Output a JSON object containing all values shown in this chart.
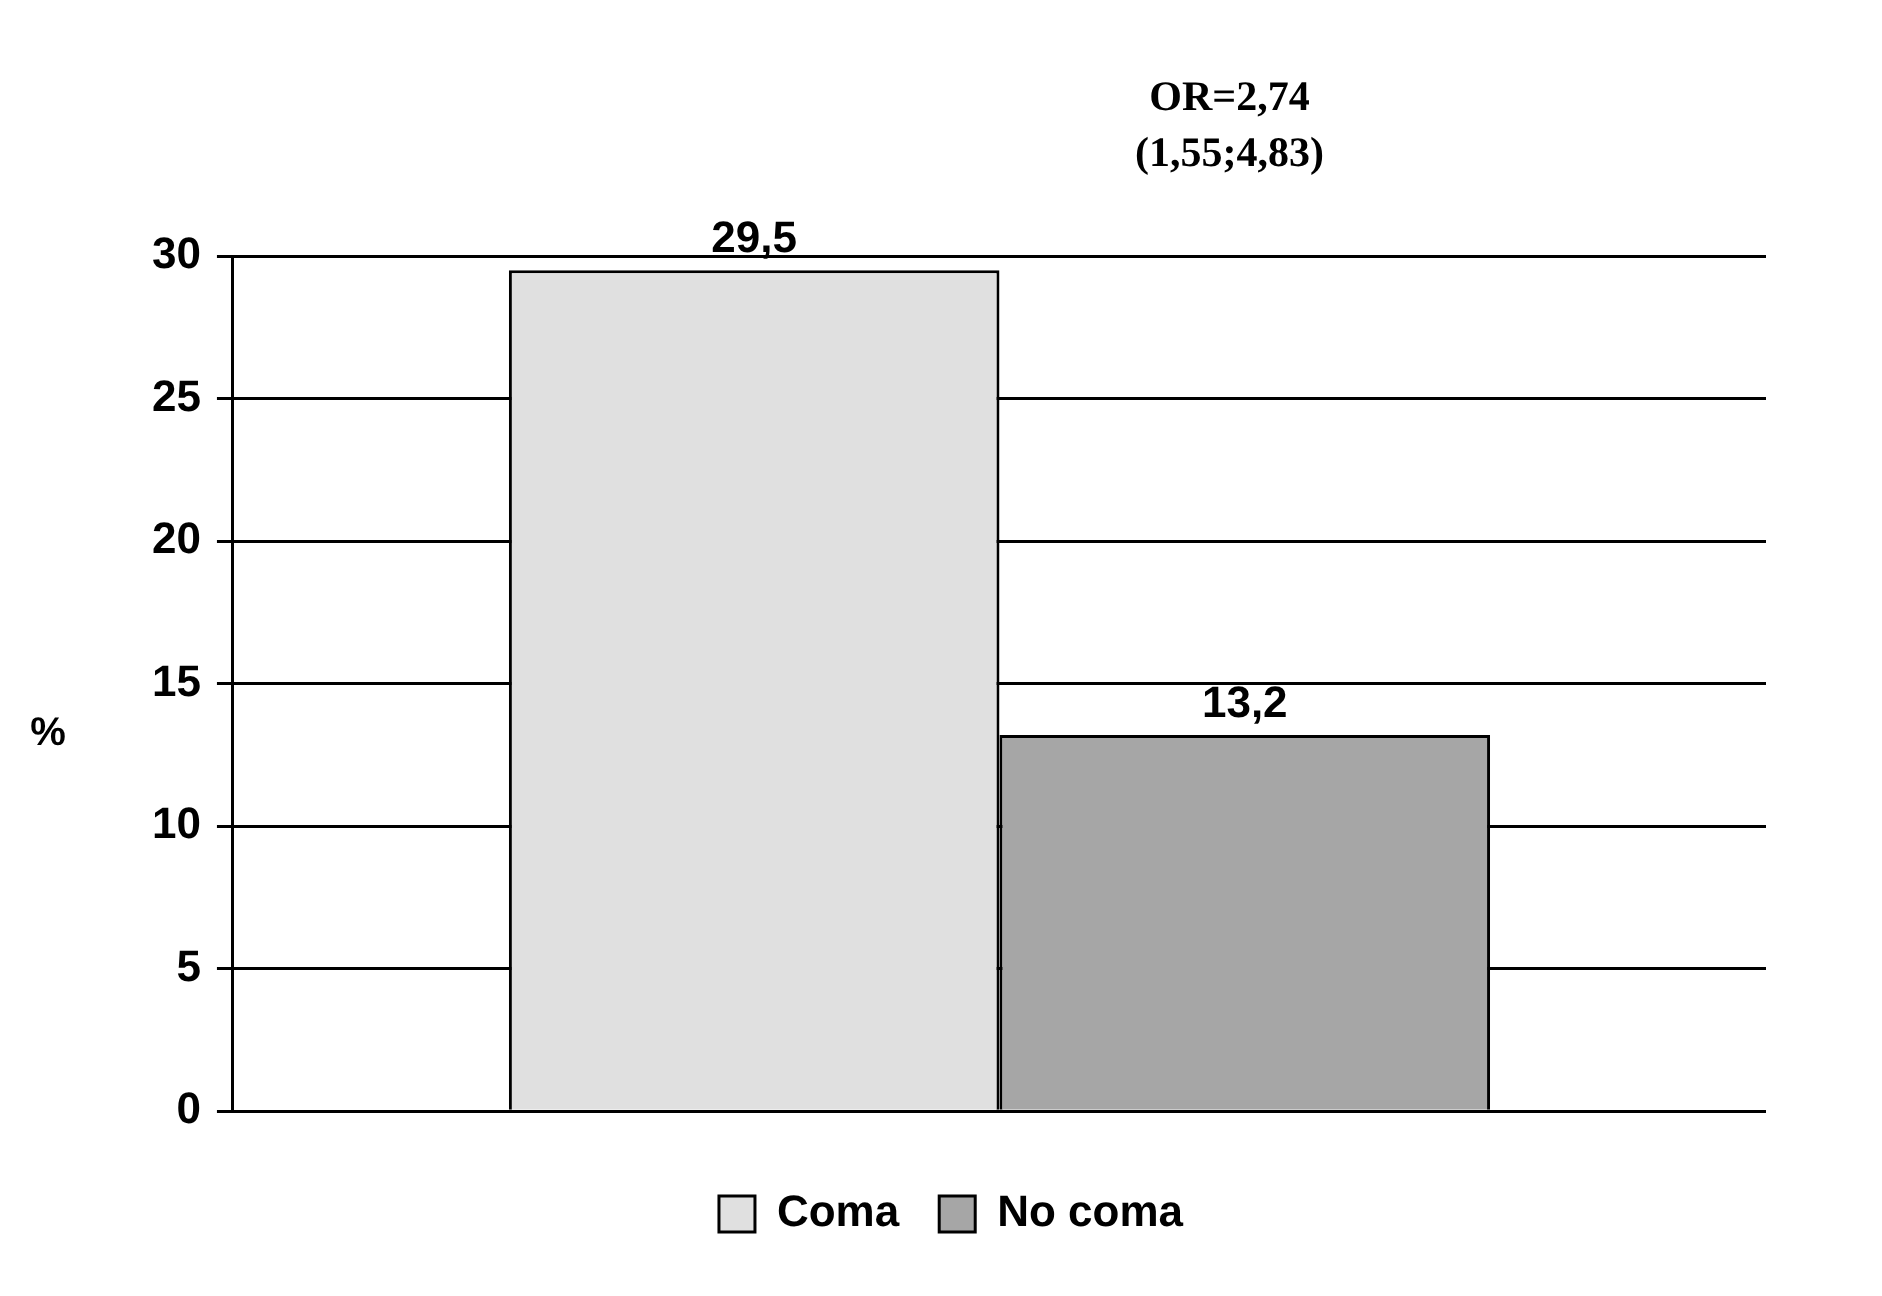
{
  "chart_data": {
    "type": "bar",
    "ylabel": "%",
    "categories": [
      null
    ],
    "series": [
      {
        "name": "Coma",
        "color": "#e0e0e0",
        "values": [
          29.5
        ],
        "value_labels": [
          "29,5"
        ]
      },
      {
        "name": "No coma",
        "color": "#a6a6a6",
        "values": [
          13.2
        ],
        "value_labels": [
          "13,2"
        ]
      }
    ],
    "ylim": [
      0,
      30
    ],
    "yticks": [
      0,
      5,
      10,
      15,
      20,
      25,
      30
    ],
    "grid": "y",
    "legend": "bottom",
    "annotations": [
      "OR=2,74",
      "(1,55;4,83)"
    ]
  }
}
